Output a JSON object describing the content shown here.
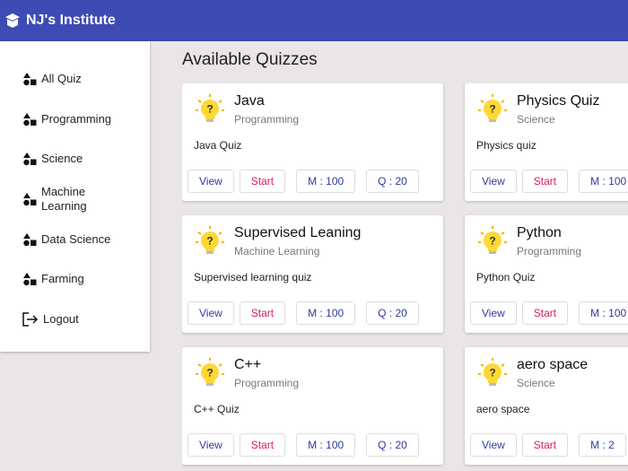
{
  "header": {
    "title": "NJ's Institute"
  },
  "sidebar": {
    "items": [
      "All Quiz",
      "Programming",
      "Science",
      "Machine Learning",
      "Data Science",
      "Farming"
    ],
    "logout": "Logout"
  },
  "main": {
    "heading": "Available Quizzes",
    "quizzes": [
      {
        "title": "Java",
        "category": "Programming",
        "description": "Java Quiz",
        "buttons": [
          "View",
          "Start",
          "M : 100",
          "Q : 20"
        ]
      },
      {
        "title": "Physics Quiz",
        "category": "Science",
        "description": "Physics quiz",
        "buttons": [
          "View",
          "Start",
          "M : 100"
        ]
      },
      {
        "title": "Supervised Leaning",
        "category": "Machine Learning",
        "description": "Supervised learning quiz",
        "buttons": [
          "View",
          "Start",
          "M : 100",
          "Q : 20"
        ]
      },
      {
        "title": "Python",
        "category": "Programming",
        "description": "Python Quiz",
        "buttons": [
          "View",
          "Start",
          "M : 100"
        ]
      },
      {
        "title": "C++",
        "category": "Programming",
        "description": "C++ Quiz",
        "buttons": [
          "View",
          "Start",
          "M : 100",
          "Q : 20"
        ]
      },
      {
        "title": "aero space",
        "category": "Science",
        "description": "aero space",
        "buttons": [
          "View",
          "Start",
          "M : 2"
        ]
      }
    ]
  }
}
